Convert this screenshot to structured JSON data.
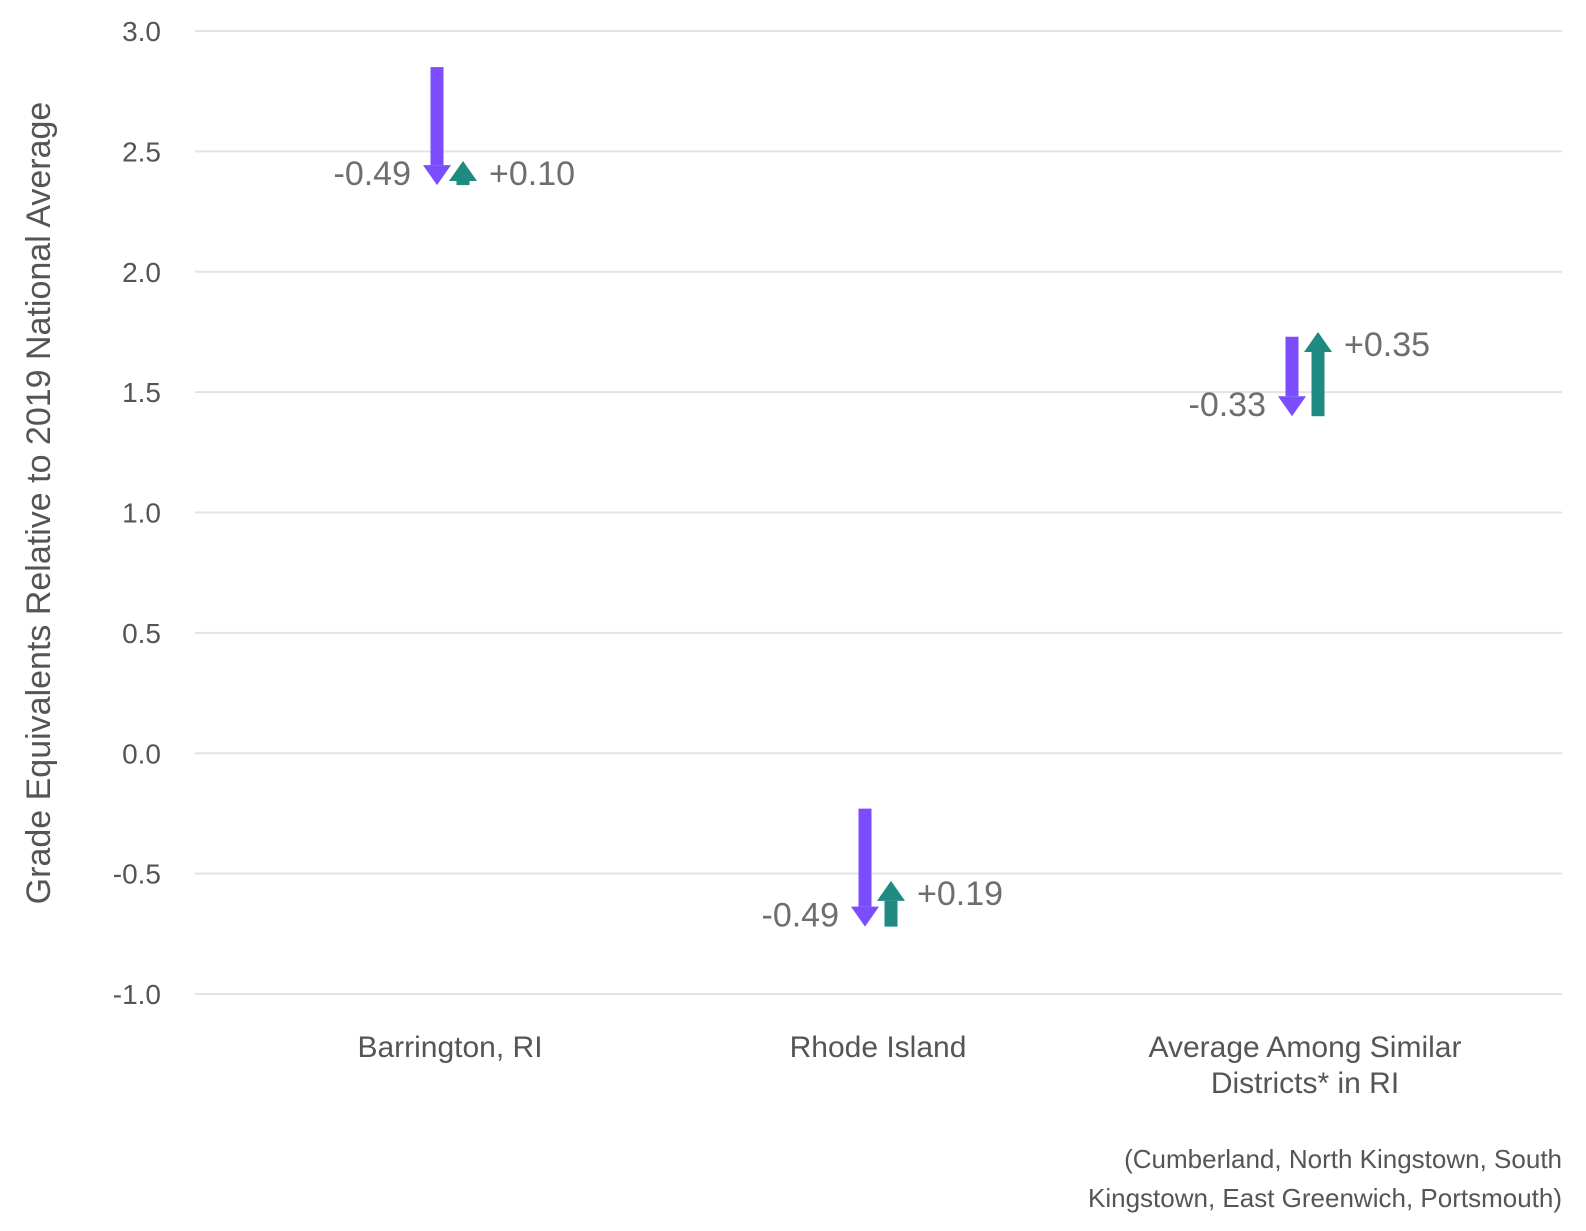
{
  "chart_data": {
    "type": "arrow",
    "ylabel": "Grade Equivalents Relative to 2019 National Average",
    "ylim": [
      -1.0,
      3.0
    ],
    "yticks": [
      3.0,
      2.5,
      2.0,
      1.5,
      1.0,
      0.5,
      0.0,
      -0.5,
      -1.0
    ],
    "ytick_labels": [
      "3.0",
      "2.5",
      "2.0",
      "1.5",
      "1.0",
      "0.5",
      "0.0",
      "-0.5",
      "-1.0"
    ],
    "grid": true,
    "colors": {
      "decline": "#7b4dff",
      "recovery": "#1f8a80",
      "grid": "#e3e3e3"
    },
    "categories": [
      {
        "label_lines": [
          "Barrington, RI"
        ],
        "start": 2.85,
        "decline": -0.49,
        "recovery": 0.1,
        "decline_label": "-0.49",
        "recovery_label": "+0.10"
      },
      {
        "label_lines": [
          "Rhode Island"
        ],
        "start": -0.23,
        "decline": -0.49,
        "recovery": 0.19,
        "decline_label": "-0.49",
        "recovery_label": "+0.19"
      },
      {
        "label_lines": [
          "Average Among Similar",
          "Districts* in RI"
        ],
        "start": 1.73,
        "decline": -0.33,
        "recovery": 0.35,
        "decline_label": "-0.33",
        "recovery_label": "+0.35"
      }
    ],
    "footnote_lines": [
      "(Cumberland, North Kingstown, South",
      "Kingstown, East Greenwich, Portsmouth)"
    ]
  }
}
